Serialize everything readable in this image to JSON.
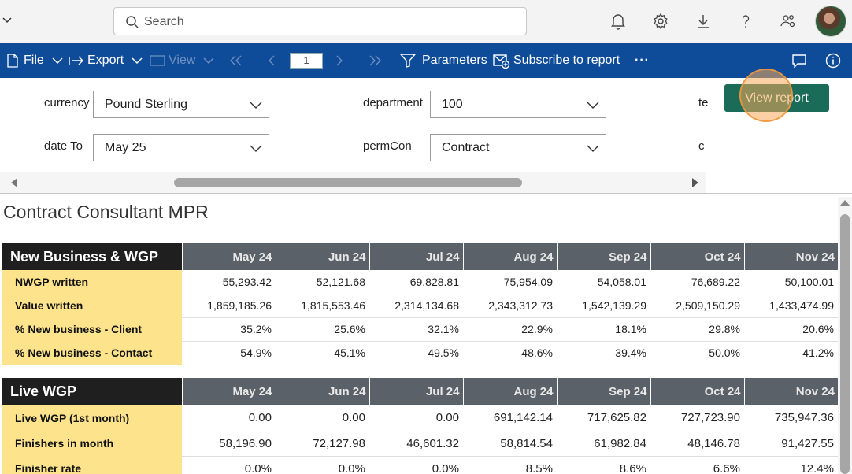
{
  "search": {
    "placeholder": "Search"
  },
  "toolbar": {
    "file_label": "File",
    "export_label": "Export",
    "view_label": "View",
    "page_number": "1",
    "parameters_label": "Parameters",
    "subscribe_label": "Subscribe to report",
    "more_label": "···"
  },
  "params": {
    "currency": {
      "label": "currency",
      "value": "Pound Sterling"
    },
    "department": {
      "label": "department",
      "value": "100"
    },
    "date_to": {
      "label": "date To",
      "value": "May 25"
    },
    "perm_con": {
      "label": "permCon",
      "value": "Contract"
    },
    "cut_label_1": "te",
    "cut_label_2": "c",
    "view_report_label": "View report"
  },
  "report": {
    "title": "Contract Consultant MPR",
    "sections": [
      {
        "name": "New Business & WGP",
        "months": [
          "May 24",
          "Jun 24",
          "Jul 24",
          "Aug 24",
          "Sep 24",
          "Oct 24",
          "Nov 24"
        ],
        "rows": [
          {
            "label": "NWGP written",
            "values": [
              "55,293.42",
              "52,121.68",
              "69,828.81",
              "75,954.09",
              "54,058.01",
              "76,689.22",
              "50,100.01"
            ]
          },
          {
            "label": "Value written",
            "values": [
              "1,859,185.26",
              "1,815,553.46",
              "2,314,134.68",
              "2,343,312.73",
              "1,542,139.29",
              "2,509,150.29",
              "1,433,474.99"
            ]
          },
          {
            "label": "% New business - Client",
            "values": [
              "35.2%",
              "25.6%",
              "32.1%",
              "22.9%",
              "18.1%",
              "29.8%",
              "20.6%"
            ]
          },
          {
            "label": "% New business - Contact",
            "values": [
              "54.9%",
              "45.1%",
              "49.5%",
              "48.6%",
              "39.4%",
              "50.0%",
              "41.2%"
            ]
          }
        ]
      },
      {
        "name": "Live WGP",
        "months": [
          "May 24",
          "Jun 24",
          "Jul 24",
          "Aug 24",
          "Sep 24",
          "Oct 24",
          "Nov 24"
        ],
        "rows": [
          {
            "label": "Live WGP (1st month)",
            "values": [
              "0.00",
              "0.00",
              "0.00",
              "691,142.14",
              "717,625.82",
              "727,723.90",
              "735,947.36"
            ]
          },
          {
            "label": "Finishers in month",
            "values": [
              "58,196.90",
              "72,127.98",
              "46,601.32",
              "58,814.54",
              "61,982.84",
              "48,146.78",
              "91,427.55"
            ]
          },
          {
            "label": "Finisher rate",
            "values": [
              "0.0%",
              "0.0%",
              "0.0%",
              "8.5%",
              "8.6%",
              "6.6%",
              "12.4%"
            ]
          }
        ]
      }
    ]
  },
  "colors": {
    "toolbar_bg": "#0e4c9a",
    "view_button_bg": "#1a6b57",
    "section_header_bg": "#1f1f1f",
    "month_header_bg": "#5b6168",
    "row_label_bg": "#fde48c"
  },
  "icons": [
    "chevron-down-icon",
    "search-icon",
    "bell-icon",
    "gear-icon",
    "download-icon",
    "help-icon",
    "people-settings-icon",
    "file-icon",
    "export-icon",
    "view-icon",
    "first-page-icon",
    "prev-page-icon",
    "next-page-icon",
    "last-page-icon",
    "filter-icon",
    "subscribe-icon",
    "more-icon",
    "comment-icon",
    "info-icon"
  ]
}
